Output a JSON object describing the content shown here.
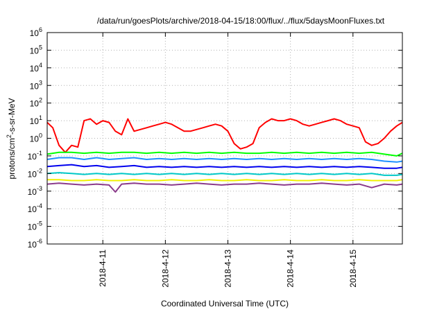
{
  "chart_data": {
    "type": "line",
    "title": "/data/run/goesPlots/archive/2018-04-15/18:00/flux/../flux/5daysMoonFluxes.txt",
    "xlabel": "Coordinated Universal Time (UTC)",
    "ylabel": {
      "base": "protons/cm",
      "sup": "2",
      "rest": "-s-sr-MeV"
    },
    "y_scale": "log",
    "ylim_exp": [
      -6,
      6
    ],
    "y_tick_exponents": [
      -6,
      -5,
      -4,
      -3,
      -2,
      -1,
      0,
      1,
      2,
      3,
      4,
      5,
      6
    ],
    "xlim_days": [
      10.11,
      15.79
    ],
    "x_ticks": [
      {
        "label": "2018-4-11",
        "day": 11
      },
      {
        "label": "2018-4-12",
        "day": 12
      },
      {
        "label": "2018-4-13",
        "day": 13
      },
      {
        "label": "2018-4-14",
        "day": 14
      },
      {
        "label": "2018-4-15",
        "day": 15
      }
    ],
    "grid": true,
    "legend": "none",
    "series": [
      {
        "color": "#ff0000",
        "day": [
          10.11,
          10.2,
          10.3,
          10.4,
          10.5,
          10.6,
          10.7,
          10.8,
          10.9,
          11.0,
          11.1,
          11.2,
          11.3,
          11.4,
          11.5,
          11.6,
          11.7,
          11.8,
          11.9,
          12.0,
          12.1,
          12.2,
          12.3,
          12.4,
          12.5,
          12.6,
          12.7,
          12.8,
          12.9,
          13.0,
          13.1,
          13.2,
          13.3,
          13.4,
          13.5,
          13.6,
          13.7,
          13.8,
          13.9,
          14.0,
          14.1,
          14.2,
          14.3,
          14.4,
          14.5,
          14.6,
          14.7,
          14.8,
          14.9,
          15.0,
          15.1,
          15.2,
          15.3,
          15.4,
          15.5,
          15.6,
          15.7,
          15.79
        ],
        "y_exp": [
          0.9,
          0.6,
          -0.4,
          -0.8,
          -0.4,
          -0.5,
          1.0,
          1.1,
          0.8,
          1.0,
          0.9,
          0.4,
          0.2,
          1.1,
          0.4,
          0.5,
          0.6,
          0.7,
          0.8,
          0.9,
          0.8,
          0.6,
          0.4,
          0.4,
          0.5,
          0.6,
          0.7,
          0.8,
          0.7,
          0.4,
          -0.3,
          -0.6,
          -0.5,
          -0.3,
          0.6,
          0.9,
          1.1,
          1.0,
          1.0,
          1.1,
          1.0,
          0.8,
          0.7,
          0.8,
          0.9,
          1.0,
          1.1,
          1.0,
          0.8,
          0.7,
          0.6,
          -0.2,
          -0.4,
          -0.3,
          0.0,
          0.4,
          0.7,
          0.9
        ]
      },
      {
        "color": "#00ff00",
        "day": [
          10.11,
          10.3,
          10.5,
          10.7,
          10.9,
          11.1,
          11.3,
          11.5,
          11.7,
          11.9,
          12.1,
          12.3,
          12.5,
          12.7,
          12.9,
          13.1,
          13.3,
          13.5,
          13.7,
          13.9,
          14.1,
          14.3,
          14.5,
          14.7,
          14.9,
          15.1,
          15.3,
          15.5,
          15.7,
          15.79
        ],
        "y_exp": [
          -0.9,
          -0.8,
          -0.8,
          -0.85,
          -0.8,
          -0.85,
          -0.8,
          -0.8,
          -0.85,
          -0.8,
          -0.85,
          -0.8,
          -0.85,
          -0.8,
          -0.85,
          -0.8,
          -0.85,
          -0.85,
          -0.8,
          -0.85,
          -0.8,
          -0.85,
          -0.8,
          -0.85,
          -0.8,
          -0.85,
          -0.8,
          -0.9,
          -1.0,
          -0.85
        ]
      },
      {
        "color": "#1e90ff",
        "day": [
          10.11,
          10.3,
          10.5,
          10.7,
          10.9,
          11.1,
          11.3,
          11.5,
          11.7,
          11.9,
          12.1,
          12.3,
          12.5,
          12.7,
          12.9,
          13.1,
          13.3,
          13.5,
          13.7,
          13.9,
          14.1,
          14.3,
          14.5,
          14.7,
          14.9,
          15.1,
          15.3,
          15.5,
          15.7,
          15.79
        ],
        "y_exp": [
          -1.2,
          -1.1,
          -1.1,
          -1.2,
          -1.1,
          -1.2,
          -1.15,
          -1.1,
          -1.2,
          -1.15,
          -1.2,
          -1.15,
          -1.2,
          -1.15,
          -1.2,
          -1.15,
          -1.2,
          -1.15,
          -1.2,
          -1.15,
          -1.2,
          -1.15,
          -1.2,
          -1.15,
          -1.2,
          -1.15,
          -1.2,
          -1.3,
          -1.35,
          -1.3
        ]
      },
      {
        "color": "#0000ee",
        "day": [
          10.11,
          10.3,
          10.5,
          10.7,
          10.9,
          11.1,
          11.3,
          11.5,
          11.7,
          11.9,
          12.1,
          12.3,
          12.5,
          12.7,
          12.9,
          13.1,
          13.3,
          13.5,
          13.7,
          13.9,
          14.1,
          14.3,
          14.5,
          14.7,
          14.9,
          15.1,
          15.3,
          15.5,
          15.7,
          15.79
        ],
        "y_exp": [
          -1.6,
          -1.55,
          -1.5,
          -1.6,
          -1.55,
          -1.65,
          -1.6,
          -1.55,
          -1.65,
          -1.6,
          -1.65,
          -1.6,
          -1.65,
          -1.6,
          -1.65,
          -1.6,
          -1.65,
          -1.6,
          -1.65,
          -1.6,
          -1.65,
          -1.6,
          -1.65,
          -1.6,
          -1.65,
          -1.6,
          -1.65,
          -1.7,
          -1.7,
          -1.65
        ]
      },
      {
        "color": "#00c8c8",
        "day": [
          10.11,
          10.3,
          10.5,
          10.7,
          10.9,
          11.1,
          11.3,
          11.5,
          11.7,
          11.9,
          12.1,
          12.3,
          12.5,
          12.7,
          12.9,
          13.1,
          13.3,
          13.5,
          13.7,
          13.9,
          14.1,
          14.3,
          14.5,
          14.7,
          14.9,
          15.1,
          15.3,
          15.5,
          15.7,
          15.79
        ],
        "y_exp": [
          -2.0,
          -1.95,
          -2.0,
          -2.05,
          -2.0,
          -2.05,
          -2.0,
          -2.05,
          -2.0,
          -2.05,
          -2.0,
          -2.05,
          -2.0,
          -2.05,
          -2.0,
          -2.05,
          -2.0,
          -2.05,
          -2.0,
          -2.05,
          -2.0,
          -2.05,
          -2.0,
          -2.05,
          -2.0,
          -2.05,
          -2.0,
          -2.1,
          -2.1,
          -2.05
        ]
      },
      {
        "color": "#f0f000",
        "day": [
          10.11,
          10.3,
          10.5,
          10.7,
          10.9,
          11.1,
          11.3,
          11.5,
          11.7,
          11.9,
          12.1,
          12.3,
          12.5,
          12.7,
          12.9,
          13.1,
          13.3,
          13.5,
          13.7,
          13.9,
          14.1,
          14.3,
          14.5,
          14.7,
          14.9,
          15.1,
          15.3,
          15.5,
          15.7,
          15.79
        ],
        "y_exp": [
          -2.35,
          -2.35,
          -2.4,
          -2.4,
          -2.35,
          -2.4,
          -2.4,
          -2.35,
          -2.4,
          -2.4,
          -2.35,
          -2.4,
          -2.4,
          -2.35,
          -2.4,
          -2.4,
          -2.35,
          -2.4,
          -2.4,
          -2.35,
          -2.4,
          -2.4,
          -2.35,
          -2.4,
          -2.4,
          -2.35,
          -2.4,
          -2.4,
          -2.4,
          -2.35
        ]
      },
      {
        "color": "#8b3a8b",
        "day": [
          10.11,
          10.3,
          10.5,
          10.7,
          10.9,
          11.1,
          11.2,
          11.3,
          11.5,
          11.7,
          11.9,
          12.1,
          12.3,
          12.5,
          12.7,
          12.9,
          13.1,
          13.3,
          13.5,
          13.7,
          13.9,
          14.1,
          14.3,
          14.5,
          14.7,
          14.9,
          15.1,
          15.3,
          15.5,
          15.7,
          15.79
        ],
        "y_exp": [
          -2.6,
          -2.55,
          -2.6,
          -2.65,
          -2.6,
          -2.65,
          -3.05,
          -2.6,
          -2.55,
          -2.6,
          -2.6,
          -2.65,
          -2.6,
          -2.55,
          -2.6,
          -2.65,
          -2.6,
          -2.6,
          -2.55,
          -2.6,
          -2.65,
          -2.6,
          -2.6,
          -2.55,
          -2.6,
          -2.65,
          -2.6,
          -2.8,
          -2.6,
          -2.65,
          -2.6
        ]
      }
    ]
  }
}
